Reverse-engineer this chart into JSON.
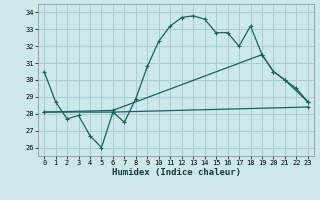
{
  "xlabel": "Humidex (Indice chaleur)",
  "xlim": [
    -0.5,
    23.5
  ],
  "ylim": [
    25.5,
    34.5
  ],
  "yticks": [
    26,
    27,
    28,
    29,
    30,
    31,
    32,
    33,
    34
  ],
  "xticks": [
    0,
    1,
    2,
    3,
    4,
    5,
    6,
    7,
    8,
    9,
    10,
    11,
    12,
    13,
    14,
    15,
    16,
    17,
    18,
    19,
    20,
    21,
    22,
    23
  ],
  "bg_color": "#cce8ec",
  "grid_color": "#aacccc",
  "line_color": "#1a6060",
  "line1_x": [
    0,
    1,
    2,
    3,
    4,
    5,
    6,
    7,
    8,
    9,
    10,
    11,
    12,
    13,
    14,
    15,
    16,
    17,
    18,
    19,
    20,
    21,
    23
  ],
  "line1_y": [
    30.5,
    28.7,
    27.7,
    27.9,
    26.7,
    26.0,
    28.1,
    27.5,
    28.9,
    30.8,
    32.3,
    33.2,
    33.7,
    33.8,
    33.6,
    32.8,
    32.8,
    32.0,
    33.2,
    31.5,
    30.5,
    30.0,
    28.7
  ],
  "line2_x": [
    0,
    6,
    23
  ],
  "line2_y": [
    28.1,
    28.1,
    28.4
  ],
  "line3_x": [
    0,
    6,
    19,
    20,
    21,
    22,
    23
  ],
  "line3_y": [
    28.1,
    28.2,
    31.5,
    30.5,
    30.0,
    29.5,
    28.7
  ]
}
